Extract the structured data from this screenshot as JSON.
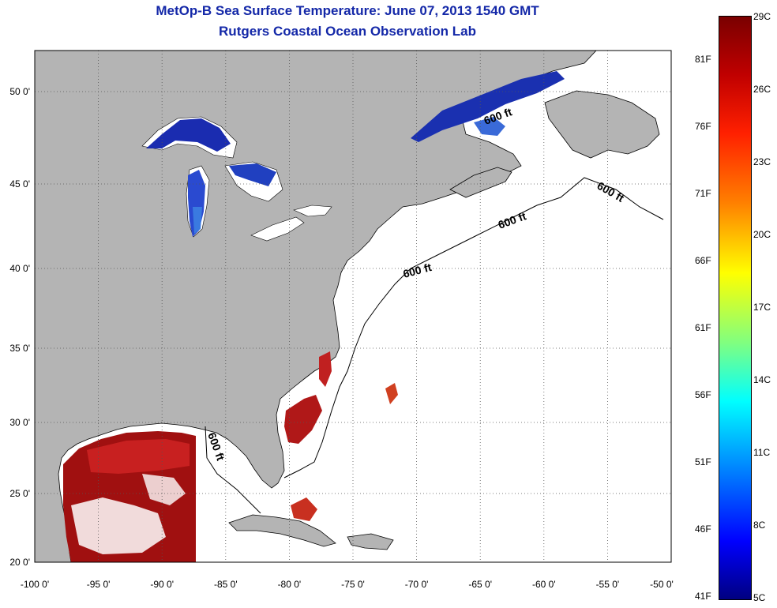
{
  "title_line1": "MetOp-B Sea Surface Temperature:  June 07, 2013 1540 GMT",
  "title_line2": "Rutgers Coastal Ocean Observation Lab",
  "x_ticks": [
    "-100 0'",
    "-95 0'",
    "-90 0'",
    "-85 0'",
    "-80 0'",
    "-75 0'",
    "-70 0'",
    "-65 0'",
    "-60 0'",
    "-55 0'",
    "-50 0'"
  ],
  "y_ticks": [
    "50 0'",
    "45 0'",
    "40 0'",
    "35 0'",
    "30 0'",
    "25 0'",
    "20 0'"
  ],
  "contour_label": "600 ft",
  "colorbar": {
    "celsius_labels": [
      "29C",
      "26C",
      "23C",
      "20C",
      "17C",
      "14C",
      "11C",
      "8C",
      "5C"
    ],
    "fahrenheit_labels": [
      "81F",
      "76F",
      "71F",
      "66F",
      "61F",
      "56F",
      "51F",
      "46F",
      "41F"
    ]
  },
  "colors": {
    "land": "#b4b4b4",
    "ocean_no_data": "#ffffff",
    "title": "#1428a8",
    "warm_sst": "#a01010",
    "cold_sst": "#1030c0"
  }
}
